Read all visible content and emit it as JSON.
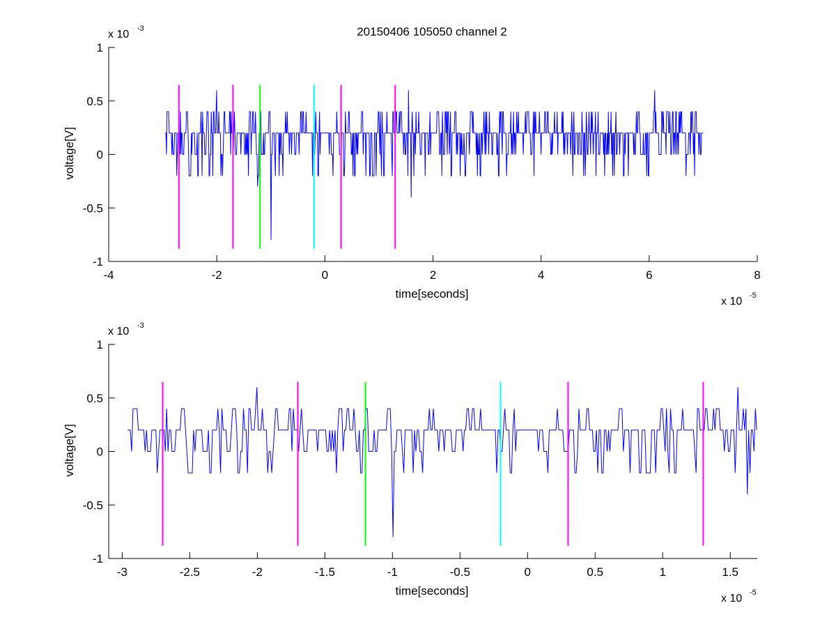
{
  "figure": {
    "title": "20150406 105050 channel 2"
  },
  "colors": {
    "trace": "#0000ff",
    "marker_magenta": "#ff00ff",
    "marker_green": "#00ff00",
    "marker_cyan": "#00ffff",
    "axes": "#000000",
    "background": "#ffffff"
  },
  "chart_data": [
    {
      "type": "line",
      "title": "20150406 105050 channel 2",
      "xlabel": "time[seconds]",
      "ylabel": "voltage[V]",
      "x_multiplier_label": "x 10",
      "x_multiplier_exp": "-5",
      "y_multiplier_label": "x 10",
      "y_multiplier_exp": "-3",
      "xlim": [
        -4e-05,
        8e-05
      ],
      "ylim": [
        -0.001,
        0.001
      ],
      "xticks": [
        -4e-05,
        -2e-05,
        0,
        2e-05,
        4e-05,
        6e-05,
        8e-05
      ],
      "xtick_labels": [
        "-4",
        "-2",
        "0",
        "2",
        "4",
        "6",
        "8"
      ],
      "yticks": [
        -0.001,
        -0.0005,
        0,
        0.0005,
        0.001
      ],
      "ytick_labels": [
        "-1",
        "-0.5",
        "0",
        "0.5",
        "1"
      ],
      "grid": false,
      "legend": "none",
      "series": [
        {
          "x_start": -2.96e-05,
          "x_end": 7e-05,
          "sample_count": 1000,
          "level_step": 0.0002,
          "typical_range": [
            -0.0002,
            0.0004
          ],
          "spikes": [
            {
              "x": -1e-05,
              "y": -0.0008
            },
            {
              "x": -2e-05,
              "y": 0.0006
            },
            {
              "x": 1.6e-05,
              "y": -0.0004
            },
            {
              "x": 1.55e-05,
              "y": 0.0006
            },
            {
              "x": 6.1e-05,
              "y": 0.0006
            },
            {
              "x": -1.25e-05,
              "y": -0.0003
            }
          ]
        }
      ],
      "markers": [
        {
          "x": -2.7e-05,
          "y_top": 0.00065,
          "y_bottom": -0.00088,
          "color": "magenta"
        },
        {
          "x": -1.7e-05,
          "y_top": 0.00065,
          "y_bottom": -0.00088,
          "color": "magenta"
        },
        {
          "x": -1.2e-05,
          "y_top": 0.00065,
          "y_bottom": -0.00088,
          "color": "green"
        },
        {
          "x": -2e-06,
          "y_top": 0.00065,
          "y_bottom": -0.00088,
          "color": "cyan"
        },
        {
          "x": 3e-06,
          "y_top": 0.00065,
          "y_bottom": -0.00088,
          "color": "magenta"
        },
        {
          "x": 1.3e-05,
          "y_top": 0.00065,
          "y_bottom": -0.00088,
          "color": "magenta"
        }
      ]
    },
    {
      "type": "line",
      "title": "",
      "xlabel": "time[seconds]",
      "ylabel": "voltage[V]",
      "x_multiplier_label": "x 10",
      "x_multiplier_exp": "-5",
      "y_multiplier_label": "x 10",
      "y_multiplier_exp": "-3",
      "xlim": [
        -3.1e-05,
        1.7e-05
      ],
      "ylim": [
        -0.001,
        0.001
      ],
      "xticks": [
        -3e-05,
        -2.5e-05,
        -2e-05,
        -1.5e-05,
        -1e-05,
        -5e-06,
        0,
        5e-06,
        1e-05,
        1.5e-05
      ],
      "xtick_labels": [
        "-3",
        "-2.5",
        "-2",
        "-1.5",
        "-1",
        "-0.5",
        "0",
        "0.5",
        "1",
        "1.5"
      ],
      "yticks": [
        -0.001,
        -0.0005,
        0,
        0.0005,
        0.001
      ],
      "ytick_labels": [
        "-1",
        "-0.5",
        "0",
        "0.5",
        "1"
      ],
      "grid": false,
      "legend": "none",
      "series": [
        {
          "x_start": -2.96e-05,
          "x_end": 1.7e-05,
          "sample_count": 470,
          "level_step": 0.0002,
          "typical_range": [
            -0.0002,
            0.0004
          ],
          "spikes": [
            {
              "x": -1e-05,
              "y": -0.0008
            },
            {
              "x": -2e-05,
              "y": 0.0006
            },
            {
              "x": 1.63e-05,
              "y": -0.0004
            },
            {
              "x": 1.56e-05,
              "y": 0.0006
            }
          ]
        }
      ],
      "markers": [
        {
          "x": -2.7e-05,
          "y_top": 0.00065,
          "y_bottom": -0.00088,
          "color": "magenta"
        },
        {
          "x": -1.7e-05,
          "y_top": 0.00065,
          "y_bottom": -0.00088,
          "color": "magenta"
        },
        {
          "x": -1.2e-05,
          "y_top": 0.00065,
          "y_bottom": -0.00088,
          "color": "green"
        },
        {
          "x": -2e-06,
          "y_top": 0.00065,
          "y_bottom": -0.00088,
          "color": "cyan"
        },
        {
          "x": 3e-06,
          "y_top": 0.00065,
          "y_bottom": -0.00088,
          "color": "magenta"
        },
        {
          "x": 1.3e-05,
          "y_top": 0.00065,
          "y_bottom": -0.00088,
          "color": "magenta"
        }
      ]
    }
  ]
}
